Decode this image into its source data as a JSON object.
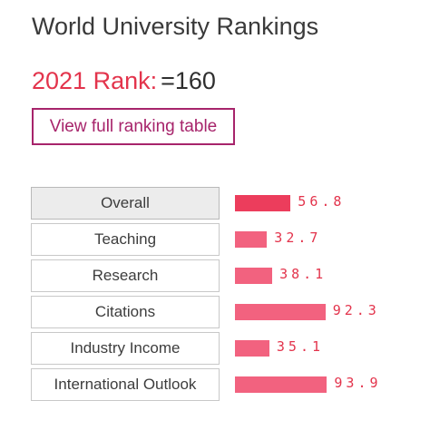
{
  "header": {
    "title": "World University Rankings"
  },
  "rank": {
    "label": "2021 Rank:",
    "value": "=160"
  },
  "ranking_link": {
    "label": "View full ranking table"
  },
  "colors": {
    "rank_label": "#e3344c",
    "link_border": "#a7246b",
    "bar_overall": "#ec3d5c",
    "bar": "#f2627f",
    "score_text": "#e3344c"
  },
  "metrics": [
    {
      "label": "Overall",
      "score": "56.8",
      "value": 56.8,
      "active": true
    },
    {
      "label": "Teaching",
      "score": "32.7",
      "value": 32.7,
      "active": false
    },
    {
      "label": "Research",
      "score": "38.1",
      "value": 38.1,
      "active": false
    },
    {
      "label": "Citations",
      "score": "92.3",
      "value": 92.3,
      "active": false
    },
    {
      "label": "Industry Income",
      "score": "35.1",
      "value": 35.1,
      "active": false
    },
    {
      "label": "International Outlook",
      "score": "93.9",
      "value": 93.9,
      "active": false
    }
  ]
}
